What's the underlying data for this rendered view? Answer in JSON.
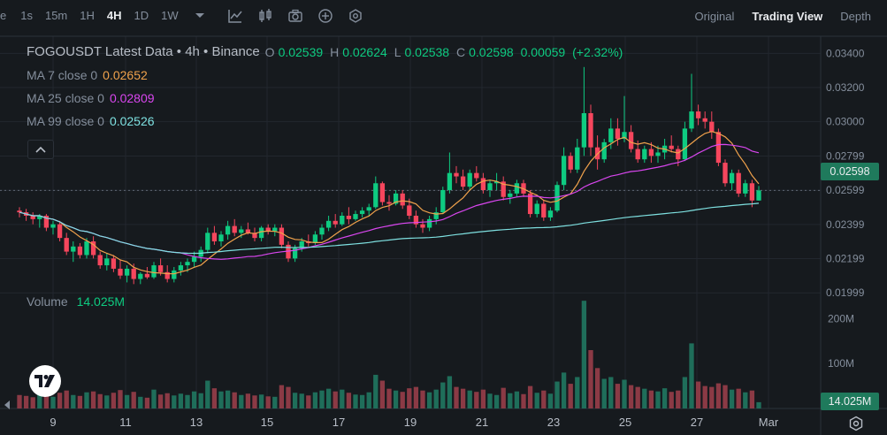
{
  "toolbar": {
    "partial_label": "e",
    "timeframes": [
      "1s",
      "15m",
      "1H",
      "4H",
      "1D",
      "1W"
    ],
    "active_timeframe": "4H",
    "view_tabs": [
      "Original",
      "Trading View",
      "Depth"
    ],
    "active_view": "Trading View"
  },
  "legend": {
    "title": "FOGOUSDT Latest Data • 4h • Binance",
    "open_label": "O",
    "open": "0.02539",
    "high_label": "H",
    "high": "0.02624",
    "low_label": "L",
    "low": "0.02538",
    "close_label": "C",
    "close": "0.02598",
    "change": "0.00059",
    "change_pct": "(+2.32%)",
    "ma": [
      {
        "name": "MA 7 close 0",
        "value": "0.02652",
        "color": "#f0a24c"
      },
      {
        "name": "MA 25 close 0",
        "value": "0.02809",
        "color": "#d946ef"
      },
      {
        "name": "MA 99 close 0",
        "value": "0.02526",
        "color": "#7ee0e0"
      }
    ]
  },
  "volume_legend": {
    "label": "Volume",
    "value": "14.025M"
  },
  "price_axis": {
    "ticks": [
      "0.03400",
      "0.03200",
      "0.03000",
      "0.02799",
      "0.02599",
      "0.02399",
      "0.02199",
      "0.01999"
    ],
    "last_price": "0.02598"
  },
  "volume_axis": {
    "ticks": [
      "200M",
      "100M"
    ],
    "last_volume": "14.025M"
  },
  "time_axis": {
    "ticks": [
      "9",
      "11",
      "13",
      "15",
      "17",
      "19",
      "21",
      "23",
      "25",
      "27",
      "Mar"
    ]
  },
  "colors": {
    "up": "#0ecb81",
    "down": "#f6465d",
    "up_vol": "#1f6e5a",
    "down_vol": "#8b3a45",
    "background": "#161a1e",
    "grid": "#22272e"
  },
  "chart_data": {
    "type": "candlestick",
    "symbol": "FOGOUSDT",
    "interval": "4h",
    "ylim": [
      0.0185,
      0.035
    ],
    "volume_ylim": [
      0,
      260
    ],
    "volume_unit": "M",
    "candles": [
      [
        0.0248,
        0.025,
        0.0244,
        0.0247,
        30
      ],
      [
        0.0247,
        0.0249,
        0.0242,
        0.0245,
        28
      ],
      [
        0.0245,
        0.0247,
        0.024,
        0.0243,
        25
      ],
      [
        0.0243,
        0.0246,
        0.0238,
        0.0245,
        32
      ],
      [
        0.0245,
        0.0246,
        0.0236,
        0.0238,
        27
      ],
      [
        0.0238,
        0.0242,
        0.0234,
        0.024,
        26
      ],
      [
        0.024,
        0.0242,
        0.023,
        0.0232,
        35
      ],
      [
        0.0232,
        0.0235,
        0.0222,
        0.0224,
        40
      ],
      [
        0.0224,
        0.023,
        0.0218,
        0.0227,
        30
      ],
      [
        0.0227,
        0.0229,
        0.022,
        0.0222,
        28
      ],
      [
        0.0222,
        0.0232,
        0.022,
        0.023,
        36
      ],
      [
        0.023,
        0.0233,
        0.022,
        0.0222,
        38
      ],
      [
        0.0222,
        0.0224,
        0.0214,
        0.0216,
        32
      ],
      [
        0.0216,
        0.0223,
        0.0213,
        0.022,
        29
      ],
      [
        0.022,
        0.0222,
        0.0212,
        0.0214,
        35
      ],
      [
        0.0214,
        0.0219,
        0.0208,
        0.021,
        41
      ],
      [
        0.021,
        0.0216,
        0.0206,
        0.0214,
        30
      ],
      [
        0.0214,
        0.0217,
        0.0205,
        0.0208,
        37
      ],
      [
        0.0208,
        0.0212,
        0.0205,
        0.0211,
        26
      ],
      [
        0.0211,
        0.0215,
        0.0208,
        0.0209,
        24
      ],
      [
        0.0209,
        0.0218,
        0.0208,
        0.0216,
        42
      ],
      [
        0.0216,
        0.022,
        0.021,
        0.0212,
        31
      ],
      [
        0.0212,
        0.0216,
        0.0206,
        0.0208,
        34
      ],
      [
        0.0208,
        0.0215,
        0.0206,
        0.0213,
        29
      ],
      [
        0.0213,
        0.0218,
        0.021,
        0.0216,
        33
      ],
      [
        0.0216,
        0.022,
        0.0212,
        0.0218,
        30
      ],
      [
        0.0218,
        0.0224,
        0.0215,
        0.0221,
        38
      ],
      [
        0.0221,
        0.0227,
        0.0218,
        0.0225,
        34
      ],
      [
        0.0225,
        0.0238,
        0.0223,
        0.0235,
        62
      ],
      [
        0.0235,
        0.0239,
        0.0228,
        0.023,
        45
      ],
      [
        0.023,
        0.0236,
        0.0227,
        0.0234,
        38
      ],
      [
        0.0234,
        0.0242,
        0.0231,
        0.0239,
        40
      ],
      [
        0.0239,
        0.0243,
        0.0233,
        0.0235,
        36
      ],
      [
        0.0235,
        0.0239,
        0.0232,
        0.0237,
        30
      ],
      [
        0.0237,
        0.0241,
        0.0234,
        0.0235,
        33
      ],
      [
        0.0235,
        0.0238,
        0.023,
        0.0232,
        29
      ],
      [
        0.0232,
        0.0239,
        0.023,
        0.0238,
        31
      ],
      [
        0.0238,
        0.024,
        0.0234,
        0.0236,
        27
      ],
      [
        0.0236,
        0.024,
        0.0233,
        0.0238,
        26
      ],
      [
        0.0238,
        0.024,
        0.0226,
        0.0228,
        52
      ],
      [
        0.0228,
        0.023,
        0.0218,
        0.022,
        48
      ],
      [
        0.022,
        0.0228,
        0.0218,
        0.0226,
        35
      ],
      [
        0.0226,
        0.0232,
        0.0224,
        0.023,
        33
      ],
      [
        0.023,
        0.0234,
        0.0227,
        0.0229,
        29
      ],
      [
        0.0229,
        0.0236,
        0.0228,
        0.0234,
        36
      ],
      [
        0.0234,
        0.024,
        0.0231,
        0.0238,
        40
      ],
      [
        0.0238,
        0.0245,
        0.0236,
        0.0242,
        44
      ],
      [
        0.0242,
        0.0246,
        0.0238,
        0.024,
        38
      ],
      [
        0.024,
        0.0247,
        0.0239,
        0.0245,
        42
      ],
      [
        0.0245,
        0.025,
        0.024,
        0.0243,
        35
      ],
      [
        0.0243,
        0.0248,
        0.0242,
        0.0246,
        31
      ],
      [
        0.0246,
        0.025,
        0.0244,
        0.0248,
        30
      ],
      [
        0.0248,
        0.0252,
        0.0245,
        0.025,
        36
      ],
      [
        0.025,
        0.0268,
        0.0249,
        0.0264,
        75
      ],
      [
        0.0264,
        0.0265,
        0.0251,
        0.0253,
        62
      ],
      [
        0.0253,
        0.0257,
        0.0248,
        0.0252,
        44
      ],
      [
        0.0252,
        0.026,
        0.0251,
        0.0258,
        40
      ],
      [
        0.0258,
        0.026,
        0.0249,
        0.0251,
        37
      ],
      [
        0.0251,
        0.0255,
        0.0243,
        0.0245,
        45
      ],
      [
        0.0245,
        0.0248,
        0.0238,
        0.024,
        48
      ],
      [
        0.024,
        0.0243,
        0.0235,
        0.0238,
        40
      ],
      [
        0.0238,
        0.0245,
        0.0236,
        0.0243,
        36
      ],
      [
        0.0243,
        0.025,
        0.024,
        0.0247,
        42
      ],
      [
        0.0247,
        0.0262,
        0.0246,
        0.026,
        58
      ],
      [
        0.026,
        0.0282,
        0.0258,
        0.027,
        72
      ],
      [
        0.027,
        0.0274,
        0.0264,
        0.0268,
        48
      ],
      [
        0.0268,
        0.0272,
        0.026,
        0.0262,
        44
      ],
      [
        0.0262,
        0.0272,
        0.026,
        0.027,
        40
      ],
      [
        0.027,
        0.0274,
        0.0265,
        0.0267,
        37
      ],
      [
        0.0267,
        0.027,
        0.0258,
        0.026,
        42
      ],
      [
        0.026,
        0.0266,
        0.0256,
        0.0264,
        33
      ],
      [
        0.0264,
        0.027,
        0.026,
        0.0265,
        30
      ],
      [
        0.0265,
        0.0268,
        0.0254,
        0.0256,
        46
      ],
      [
        0.0256,
        0.026,
        0.0252,
        0.0258,
        34
      ],
      [
        0.0258,
        0.0266,
        0.0256,
        0.0264,
        38
      ],
      [
        0.0264,
        0.0266,
        0.0256,
        0.0258,
        32
      ],
      [
        0.0258,
        0.026,
        0.0244,
        0.0246,
        50
      ],
      [
        0.0246,
        0.0254,
        0.0244,
        0.0252,
        35
      ],
      [
        0.0252,
        0.0254,
        0.0242,
        0.0244,
        40
      ],
      [
        0.0244,
        0.025,
        0.0242,
        0.0248,
        33
      ],
      [
        0.0248,
        0.0265,
        0.0247,
        0.0263,
        60
      ],
      [
        0.0263,
        0.0285,
        0.026,
        0.028,
        80
      ],
      [
        0.028,
        0.0282,
        0.027,
        0.0272,
        55
      ],
      [
        0.0272,
        0.029,
        0.027,
        0.0285,
        70
      ],
      [
        0.0285,
        0.0332,
        0.028,
        0.0305,
        240
      ],
      [
        0.0305,
        0.031,
        0.028,
        0.0285,
        130
      ],
      [
        0.0285,
        0.0292,
        0.0272,
        0.0278,
        90
      ],
      [
        0.0278,
        0.029,
        0.0276,
        0.0288,
        66
      ],
      [
        0.0288,
        0.0302,
        0.0284,
        0.0296,
        70
      ],
      [
        0.0296,
        0.0302,
        0.0286,
        0.029,
        55
      ],
      [
        0.029,
        0.0315,
        0.0288,
        0.0294,
        64
      ],
      [
        0.0294,
        0.0298,
        0.0282,
        0.0284,
        52
      ],
      [
        0.0284,
        0.0289,
        0.0276,
        0.0278,
        48
      ],
      [
        0.0278,
        0.0286,
        0.0276,
        0.0284,
        44
      ],
      [
        0.0284,
        0.0288,
        0.0276,
        0.028,
        40
      ],
      [
        0.028,
        0.0286,
        0.0276,
        0.0282,
        38
      ],
      [
        0.0282,
        0.029,
        0.0278,
        0.0286,
        45
      ],
      [
        0.0286,
        0.0292,
        0.0282,
        0.0284,
        37
      ],
      [
        0.0284,
        0.0286,
        0.0274,
        0.0278,
        40
      ],
      [
        0.0278,
        0.03,
        0.0277,
        0.0296,
        70
      ],
      [
        0.0296,
        0.0328,
        0.0294,
        0.0306,
        145
      ],
      [
        0.0306,
        0.031,
        0.0298,
        0.0302,
        60
      ],
      [
        0.0302,
        0.0306,
        0.0296,
        0.03,
        50
      ],
      [
        0.03,
        0.0306,
        0.029,
        0.0294,
        48
      ],
      [
        0.0294,
        0.0296,
        0.0274,
        0.0276,
        56
      ],
      [
        0.0276,
        0.0278,
        0.0262,
        0.0264,
        52
      ],
      [
        0.0264,
        0.0272,
        0.026,
        0.027,
        42
      ],
      [
        0.027,
        0.0272,
        0.0256,
        0.0258,
        44
      ],
      [
        0.0258,
        0.0266,
        0.0256,
        0.0264,
        36
      ],
      [
        0.0264,
        0.0266,
        0.025,
        0.02539,
        40
      ],
      [
        0.02539,
        0.02624,
        0.02538,
        0.02598,
        14
      ]
    ],
    "ma7": [],
    "ma25": [],
    "ma99": []
  }
}
